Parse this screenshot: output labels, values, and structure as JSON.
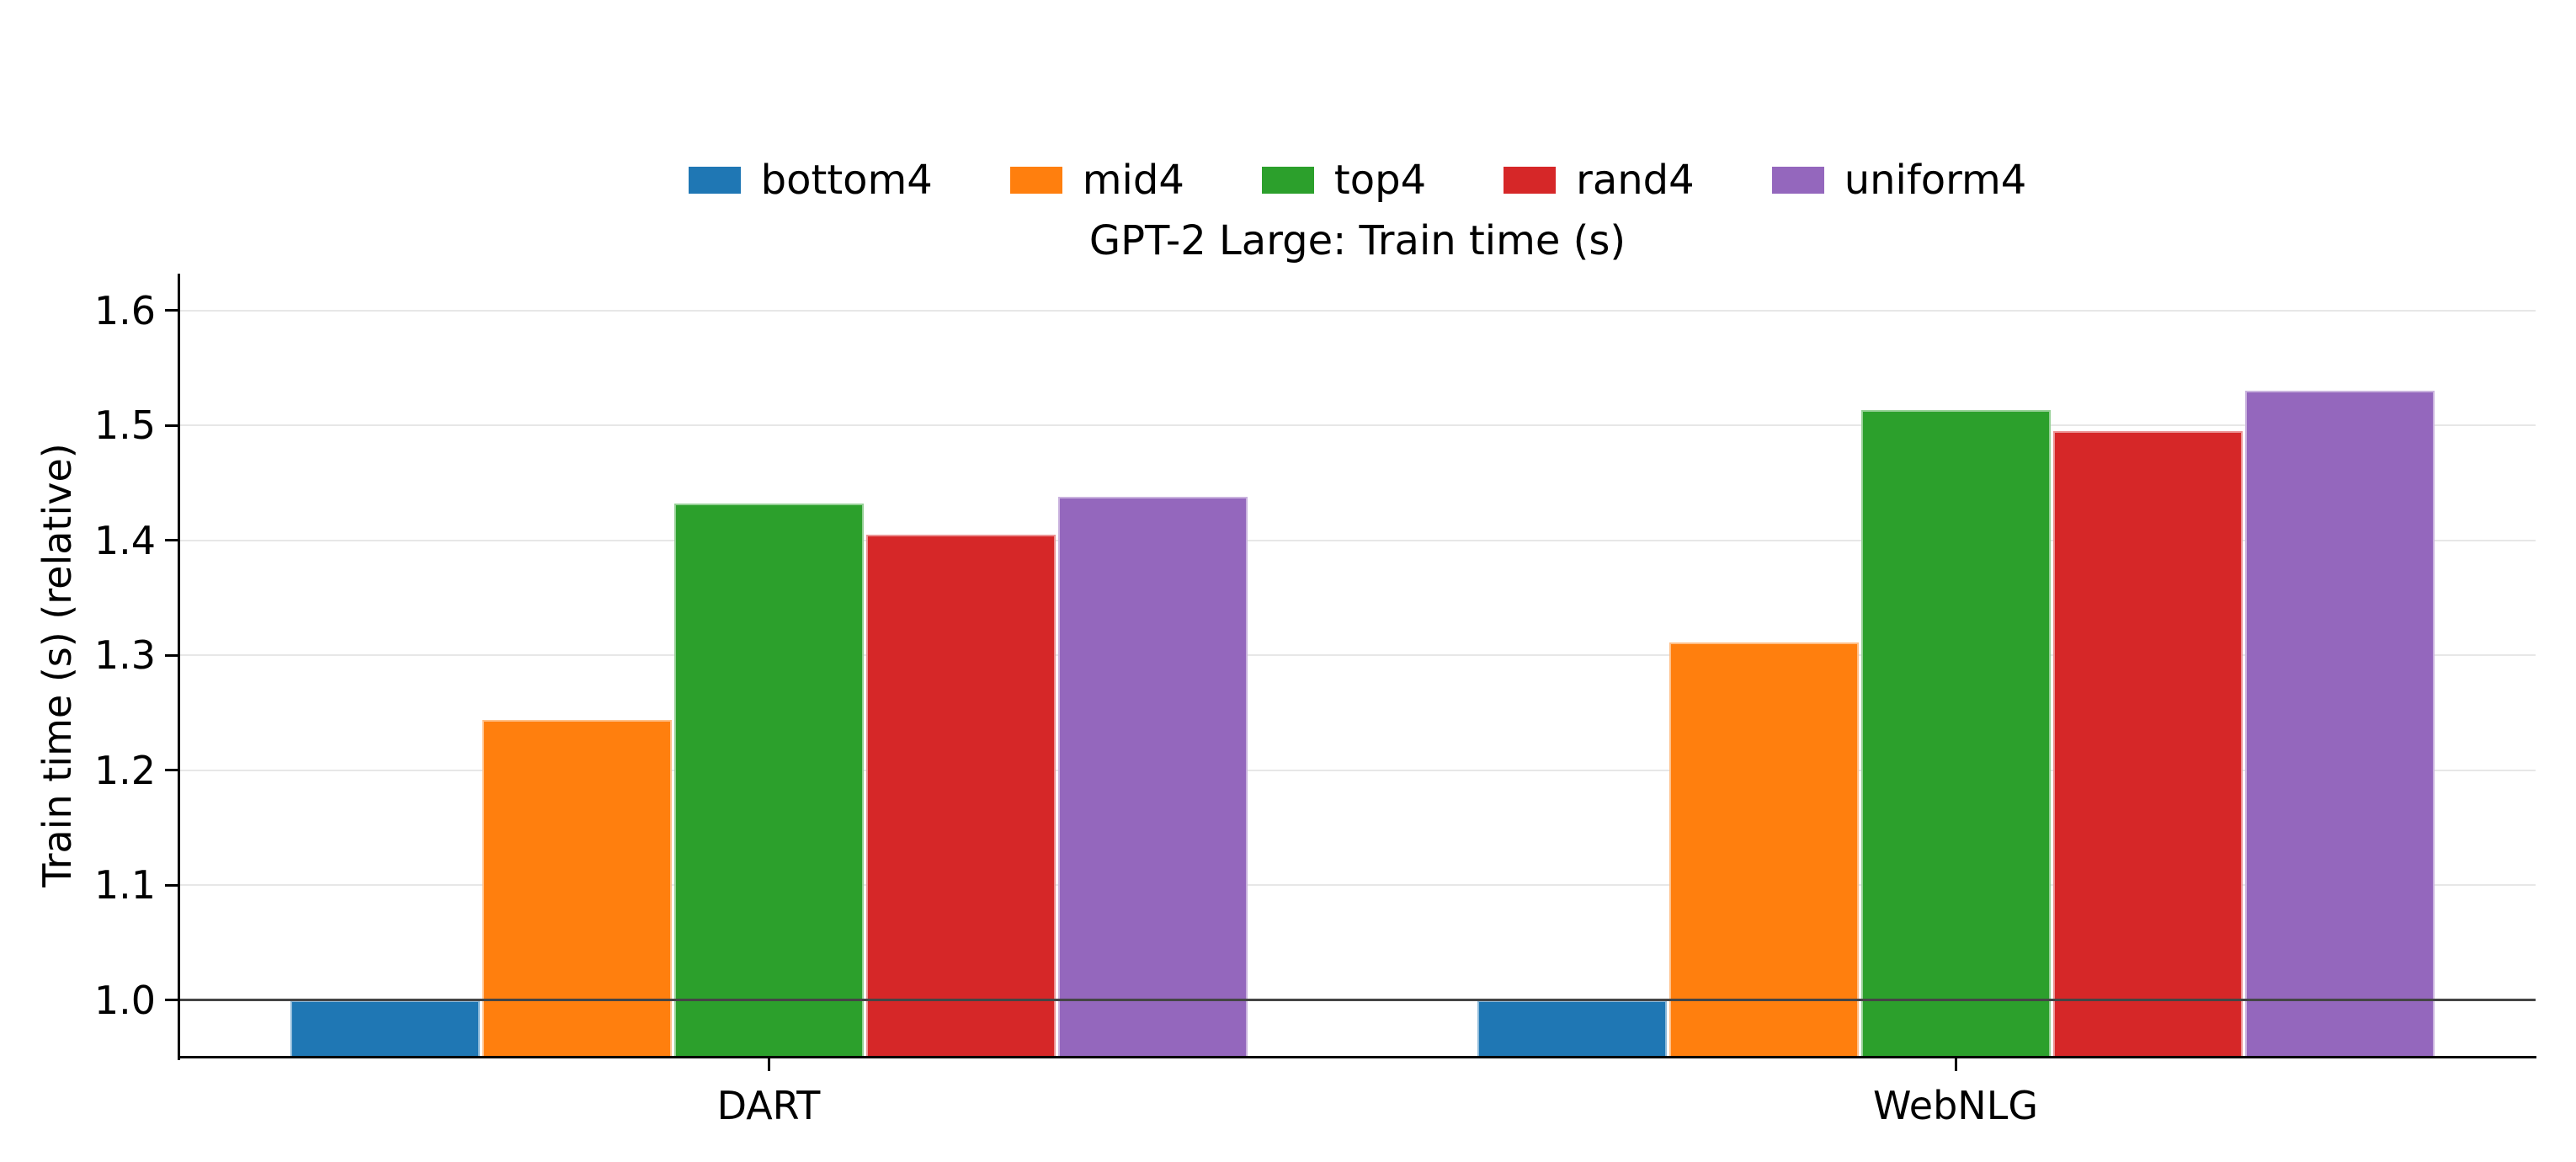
{
  "chart_data": {
    "type": "bar",
    "title": "GPT-2 Large: Train time (s)",
    "ylabel": "Train time (s) (relative)",
    "xlabel": "",
    "categories": [
      "DART",
      "WebNLG"
    ],
    "series": [
      {
        "name": "bottom4",
        "color": "#1f77b4",
        "values": [
          1.0,
          1.0
        ]
      },
      {
        "name": "mid4",
        "color": "#ff7f0e",
        "values": [
          1.244,
          1.311
        ]
      },
      {
        "name": "top4",
        "color": "#2ca02c",
        "values": [
          1.432,
          1.513
        ]
      },
      {
        "name": "rand4",
        "color": "#d62728",
        "values": [
          1.405,
          1.495
        ]
      },
      {
        "name": "uniform4",
        "color": "#9467bd",
        "values": [
          1.438,
          1.53
        ]
      }
    ],
    "ylim": [
      0.95,
      1.632
    ],
    "yticks": [
      1.0,
      1.1,
      1.2,
      1.3,
      1.4,
      1.5,
      1.6
    ],
    "ytick_labels": [
      "1.0",
      "1.1",
      "1.2",
      "1.3",
      "1.4",
      "1.5",
      "1.6"
    ],
    "baseline_value": 1.0,
    "grid": true,
    "gridline_color": "#e7e7e7",
    "baseline_color": "#454545",
    "legend_position": "top-center"
  }
}
